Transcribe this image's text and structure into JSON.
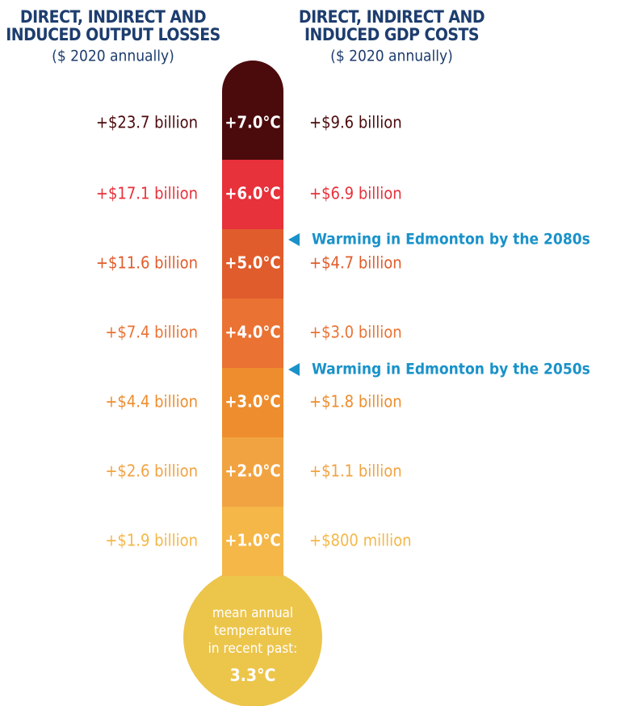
{
  "headers": {
    "left": {
      "title": [
        "DIRECT, INDIRECT AND",
        "INDUCED OUTPUT LOSSES"
      ],
      "subtitle": "($ 2020 annually)"
    },
    "right": {
      "title": [
        "DIRECT, INDIRECT AND",
        "INDUCED GDP COSTS"
      ],
      "subtitle": "($ 2020 annually)"
    }
  },
  "levels": [
    {
      "temperature": "+7.0°C",
      "output_losses": "+$23.7 billion",
      "gdp_costs": "+$9.6 billion",
      "color": "#4b0a0c"
    },
    {
      "temperature": "+6.0°C",
      "output_losses": "+$17.1 billion",
      "gdp_costs": "+$6.9 billion",
      "color": "#e7313b"
    },
    {
      "temperature": "+5.0°C",
      "output_losses": "+$11.6 billion",
      "gdp_costs": "+$4.7 billion",
      "color": "#e05c2c"
    },
    {
      "temperature": "+4.0°C",
      "output_losses": "+$7.4 billion",
      "gdp_costs": "+$3.0 billion",
      "color": "#ea7233"
    },
    {
      "temperature": "+3.0°C",
      "output_losses": "+$4.4 billion",
      "gdp_costs": "+$1.8 billion",
      "color": "#ee8d2d"
    },
    {
      "temperature": "+2.0°C",
      "output_losses": "+$2.6 billion",
      "gdp_costs": "+$1.1 billion",
      "color": "#f1a341"
    },
    {
      "temperature": "+1.0°C",
      "output_losses": "+$1.9 billion",
      "gdp_costs": "+$800 million",
      "color": "#f5b748"
    }
  ],
  "annotations": [
    {
      "label": "Warming in Edmonton by the 2080s"
    },
    {
      "label": "Warming in Edmonton by the 2050s"
    }
  ],
  "bulb": {
    "text": [
      "mean annual",
      "temperature",
      "in recent past:"
    ],
    "value": "3.3°C",
    "color": "#ecc54b"
  }
}
